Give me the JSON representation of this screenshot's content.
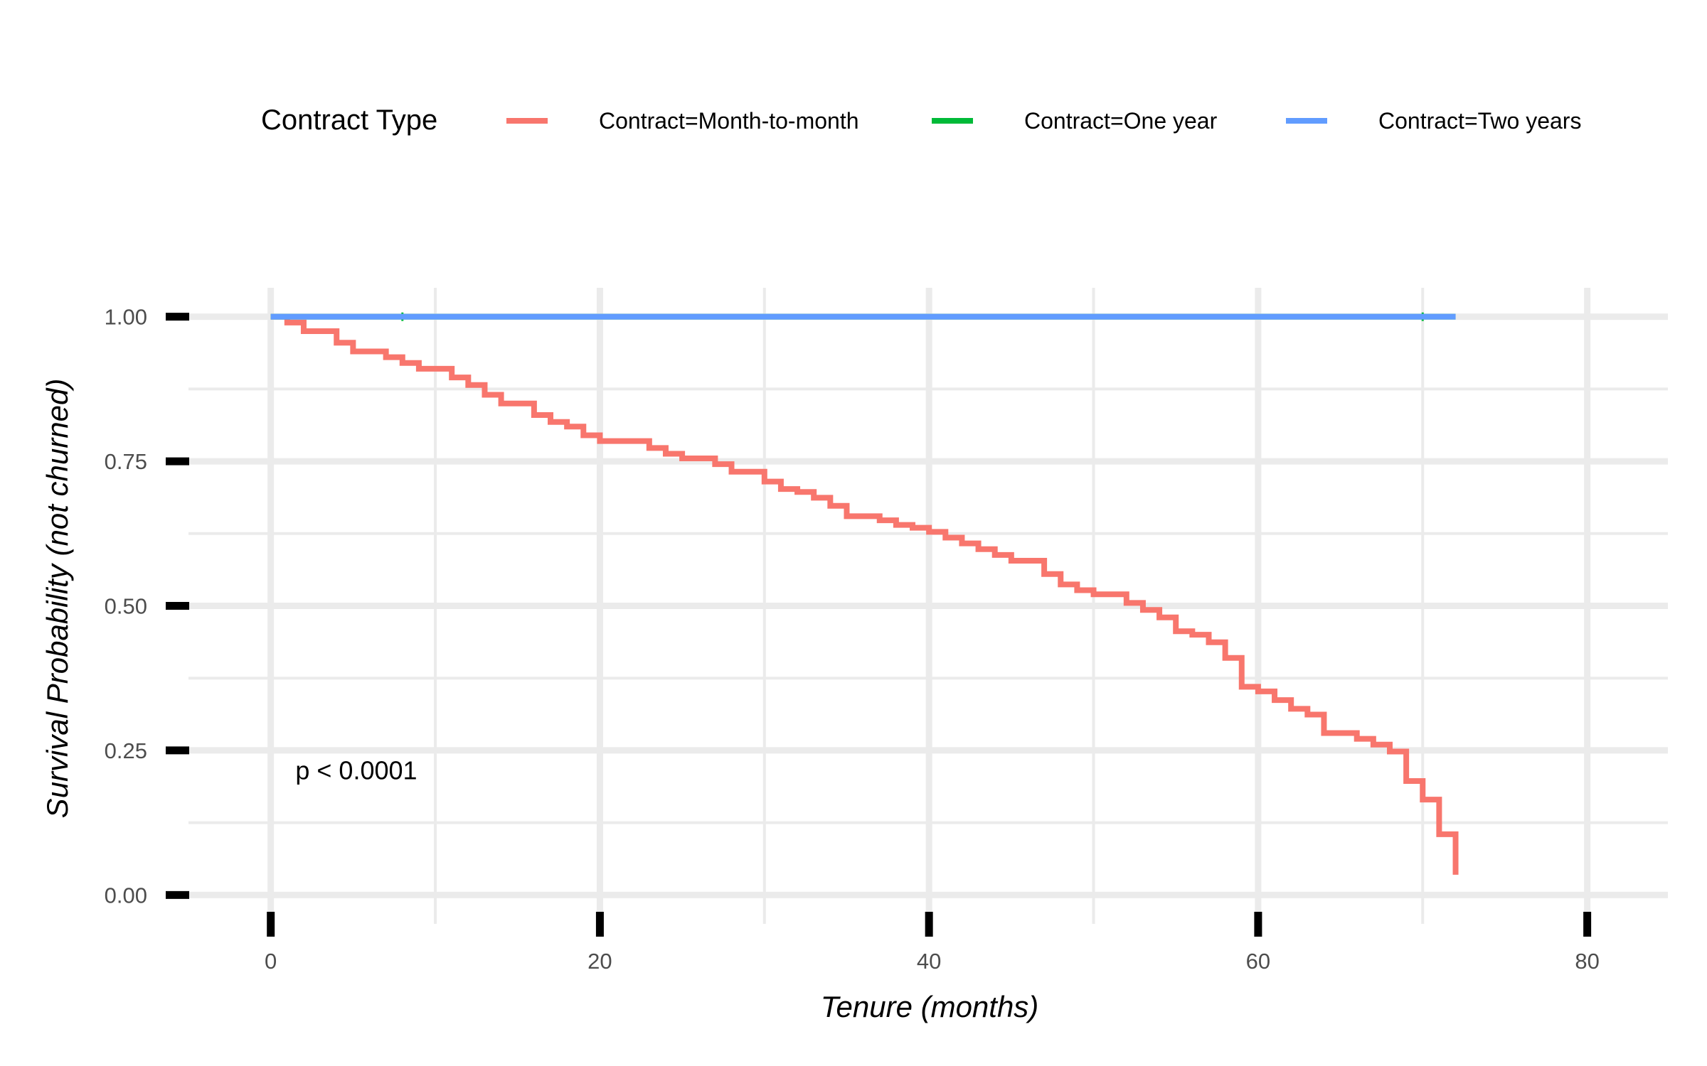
{
  "chart_data": {
    "type": "line",
    "step": true,
    "xlabel": "Tenure (months)",
    "ylabel": "Survival Probability (not churned)",
    "xlim": [
      -5,
      84.9
    ],
    "ylim": [
      -0.05,
      1.05
    ],
    "xticks": [
      0,
      20,
      40,
      60,
      80
    ],
    "xtick_labels": [
      "0",
      "20",
      "40",
      "60",
      "80"
    ],
    "yticks": [
      0,
      0.25,
      0.5,
      0.75,
      1
    ],
    "ytick_labels": [
      "0.00",
      "0.25",
      "0.50",
      "0.75",
      "1.00"
    ],
    "grid": true,
    "legend": {
      "title": "Contract Type",
      "position": "top"
    },
    "annotation": "p < 0.0001",
    "annotation_pos": [
      1.5,
      0.2
    ],
    "series": [
      {
        "name": "Contract=Month-to-month",
        "color": "#F8766D",
        "x": [
          0,
          1,
          2,
          4,
          5,
          7,
          8,
          9,
          11,
          12,
          13,
          14,
          16,
          17,
          18,
          19,
          20,
          23,
          24,
          25,
          27,
          28,
          30,
          31,
          32,
          33,
          34,
          35,
          37,
          38,
          39,
          40,
          41,
          42,
          43,
          44,
          45,
          47,
          48,
          49,
          50,
          52,
          53,
          54,
          55,
          56,
          57,
          58,
          59,
          60,
          61,
          62,
          63,
          64,
          66,
          67,
          68,
          69,
          70,
          71,
          72
        ],
        "y": [
          1.0,
          0.99,
          0.975,
          0.955,
          0.94,
          0.93,
          0.92,
          0.91,
          0.895,
          0.882,
          0.865,
          0.85,
          0.83,
          0.818,
          0.81,
          0.795,
          0.785,
          0.773,
          0.763,
          0.755,
          0.745,
          0.732,
          0.715,
          0.702,
          0.697,
          0.687,
          0.673,
          0.655,
          0.648,
          0.64,
          0.635,
          0.628,
          0.618,
          0.608,
          0.598,
          0.588,
          0.578,
          0.555,
          0.537,
          0.527,
          0.52,
          0.505,
          0.493,
          0.48,
          0.456,
          0.45,
          0.437,
          0.41,
          0.36,
          0.352,
          0.337,
          0.322,
          0.312,
          0.28,
          0.27,
          0.26,
          0.248,
          0.197,
          0.165,
          0.105,
          0.035
        ]
      },
      {
        "name": "Contract=One year",
        "color": "#00BA38",
        "x": [
          0,
          72
        ],
        "y": [
          1.0,
          1.0
        ],
        "censor_marks": [
          8,
          70
        ]
      },
      {
        "name": "Contract=Two years",
        "color": "#619CFF",
        "x": [
          0,
          72
        ],
        "y": [
          1.0,
          1.0
        ]
      }
    ]
  }
}
